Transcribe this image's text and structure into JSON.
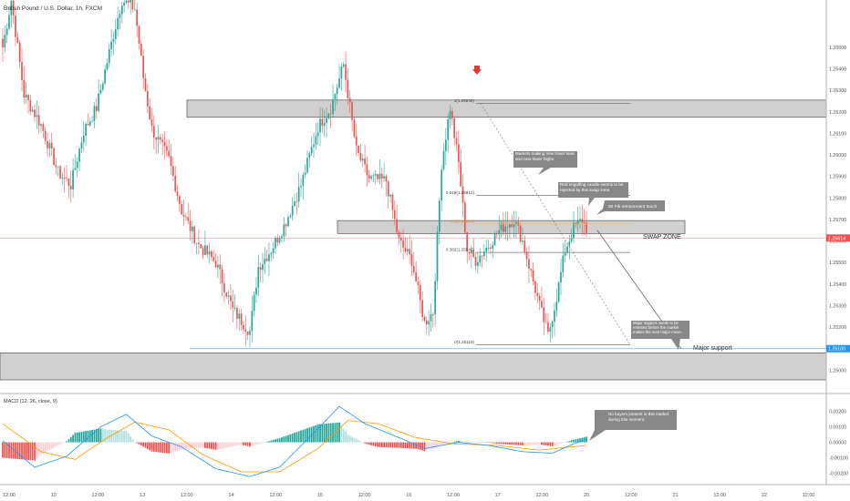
{
  "header": {
    "title": "British Pound / U.S. Dollar, 1h, FXCM"
  },
  "colors": {
    "up": "#26a69a",
    "down": "#ef5350",
    "zone_fill": "#c8c8c8",
    "zone_stroke": "#555555",
    "note_fill": "#888888",
    "macd_line": "#2196f3",
    "signal_line": "#ff9800",
    "hist_up_strong": "#26a69a",
    "hist_up_weak": "#b2dfdb",
    "hist_down_strong": "#ef5350",
    "hist_down_weak": "#ffcdd2",
    "price_badge": "#ef5350",
    "support_badge": "#2196f3",
    "arrow": "#e53935"
  },
  "chart_data": {
    "type": "candlestick",
    "title": "British Pound / U.S. Dollar, 1h, FXCM",
    "ylim": [
      1.249,
      1.2672
    ],
    "y_ticks": [
      "1.26500",
      "1.26400",
      "1.26300",
      "1.26200",
      "1.26100",
      "1.26000",
      "1.25900",
      "1.25800",
      "1.25700",
      "1.25600",
      "1.25500",
      "1.25400",
      "1.25300",
      "1.25200",
      "1.25100",
      "1.25000"
    ],
    "x_ticks": [
      "12:00",
      "10",
      "12:00",
      "13",
      "12:00",
      "14",
      "12:00",
      "15",
      "12:00",
      "16",
      "12:00",
      "17",
      "12:00",
      "20",
      "12:00",
      "21",
      "12:00",
      "22",
      "12:00"
    ],
    "price_anchors": [
      [
        0,
        1.265
      ],
      [
        4,
        1.2672
      ],
      [
        10,
        1.2628
      ],
      [
        18,
        1.2614
      ],
      [
        26,
        1.2592
      ],
      [
        32,
        1.2586
      ],
      [
        38,
        1.2611
      ],
      [
        44,
        1.2622
      ],
      [
        52,
        1.2656
      ],
      [
        56,
        1.2672
      ],
      [
        62,
        1.2668
      ],
      [
        66,
        1.2636
      ],
      [
        70,
        1.2612
      ],
      [
        78,
        1.2598
      ],
      [
        84,
        1.2574
      ],
      [
        92,
        1.2558
      ],
      [
        100,
        1.255
      ],
      [
        108,
        1.2528
      ],
      [
        116,
        1.2518
      ],
      [
        120,
        1.2548
      ],
      [
        126,
        1.2556
      ],
      [
        132,
        1.2567
      ],
      [
        140,
        1.2586
      ],
      [
        148,
        1.2613
      ],
      [
        154,
        1.2622
      ],
      [
        160,
        1.2642
      ],
      [
        166,
        1.2602
      ],
      [
        172,
        1.2589
      ],
      [
        180,
        1.2588
      ],
      [
        186,
        1.256
      ],
      [
        192,
        1.2551
      ],
      [
        198,
        1.2522
      ],
      [
        202,
        1.2527
      ],
      [
        206,
        1.2596
      ],
      [
        210,
        1.2622
      ],
      [
        214,
        1.2596
      ],
      [
        218,
        1.2556
      ],
      [
        222,
        1.2551
      ],
      [
        228,
        1.2558
      ],
      [
        234,
        1.2566
      ],
      [
        240,
        1.257
      ],
      [
        244,
        1.256
      ],
      [
        248,
        1.2545
      ],
      [
        252,
        1.253
      ],
      [
        256,
        1.2516
      ],
      [
        260,
        1.2534
      ],
      [
        264,
        1.2556
      ],
      [
        268,
        1.2566
      ],
      [
        272,
        1.257
      ],
      [
        274,
        1.2566
      ]
    ],
    "current_price": "1.25614",
    "support_level": "1.25100",
    "zones": [
      {
        "name": "upper-resistance-zone",
        "from": 1.26175,
        "to": 1.26255
      },
      {
        "name": "swap-zone",
        "from": 1.25635,
        "to": 1.25695
      },
      {
        "name": "major-support-zone",
        "from": 1.24955,
        "to": 1.2508
      }
    ],
    "fibonacci": [
      {
        "label": "1(1.26240)",
        "price": 1.2624
      },
      {
        "label": "0.618(1.25812)",
        "price": 1.25812
      },
      {
        "label": "0.5(1.25679)",
        "price": 1.25679
      },
      {
        "label": "0.382(1.25547)",
        "price": 1.25547
      },
      {
        "label": "0(1.25118)",
        "price": 1.25118
      }
    ],
    "annotations": [
      "Markets making new lower lows and new lower highs.",
      "Red engulfing candle seems to be rejected by this swap zone.",
      "50 Fib retracement touch",
      "SWAP ZONE",
      "Major support needs to be retested before the market makes the next major move.",
      "Major support",
      "No buyers present in this market during this moment."
    ],
    "macd": {
      "label": "MACD (12, 26, close, 9)",
      "ylim": [
        -0.0026,
        0.0029
      ],
      "y_ticks": [
        "0.00200",
        "0.00100",
        "0.00000",
        "-0.00100",
        "-0.00200"
      ],
      "macd_anchors": [
        [
          0,
          0.0001
        ],
        [
          15,
          -0.0016
        ],
        [
          30,
          -0.0009
        ],
        [
          46,
          0.001
        ],
        [
          58,
          0.0018
        ],
        [
          70,
          0.0004
        ],
        [
          84,
          -0.0003
        ],
        [
          100,
          -0.0017
        ],
        [
          116,
          -0.0022
        ],
        [
          130,
          -0.0016
        ],
        [
          146,
          0.0006
        ],
        [
          158,
          0.0023
        ],
        [
          170,
          0.0012
        ],
        [
          186,
          0.0003
        ],
        [
          198,
          -0.0004
        ],
        [
          206,
          -0.0002
        ],
        [
          214,
          0.0
        ],
        [
          228,
          -0.0002
        ],
        [
          244,
          -0.0006
        ],
        [
          258,
          -0.0007
        ],
        [
          268,
          -0.0001
        ],
        [
          274,
          0.0002
        ]
      ],
      "signal_anchors": [
        [
          0,
          0.0012
        ],
        [
          18,
          -0.0006
        ],
        [
          34,
          -0.0011
        ],
        [
          48,
          0.0002
        ],
        [
          62,
          0.0013
        ],
        [
          78,
          0.0008
        ],
        [
          94,
          -0.0008
        ],
        [
          112,
          -0.0019
        ],
        [
          130,
          -0.0019
        ],
        [
          148,
          -0.0004
        ],
        [
          162,
          0.0014
        ],
        [
          176,
          0.0012
        ],
        [
          194,
          0.0003
        ],
        [
          212,
          -0.0001
        ],
        [
          232,
          -0.0002
        ],
        [
          252,
          -0.0005
        ],
        [
          274,
          -0.0002
        ]
      ]
    }
  }
}
